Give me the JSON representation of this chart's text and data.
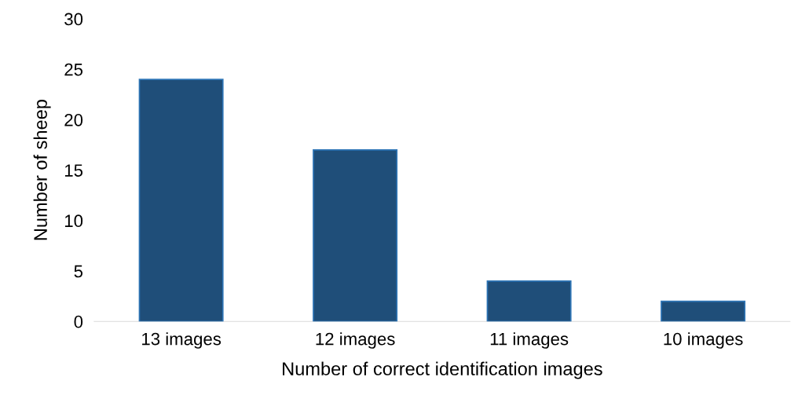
{
  "chart_data": {
    "type": "bar",
    "xlabel": "Number of correct identification images",
    "ylabel": "Number of sheep",
    "categories": [
      "13 images",
      "12 images",
      "11 images",
      "10 images"
    ],
    "values": [
      24,
      17,
      4,
      2
    ],
    "color": "#1f4e79",
    "ylim": [
      0,
      30
    ],
    "yticks": [
      0,
      5,
      10,
      15,
      20,
      25,
      30
    ],
    "grid": false,
    "legend": false
  }
}
